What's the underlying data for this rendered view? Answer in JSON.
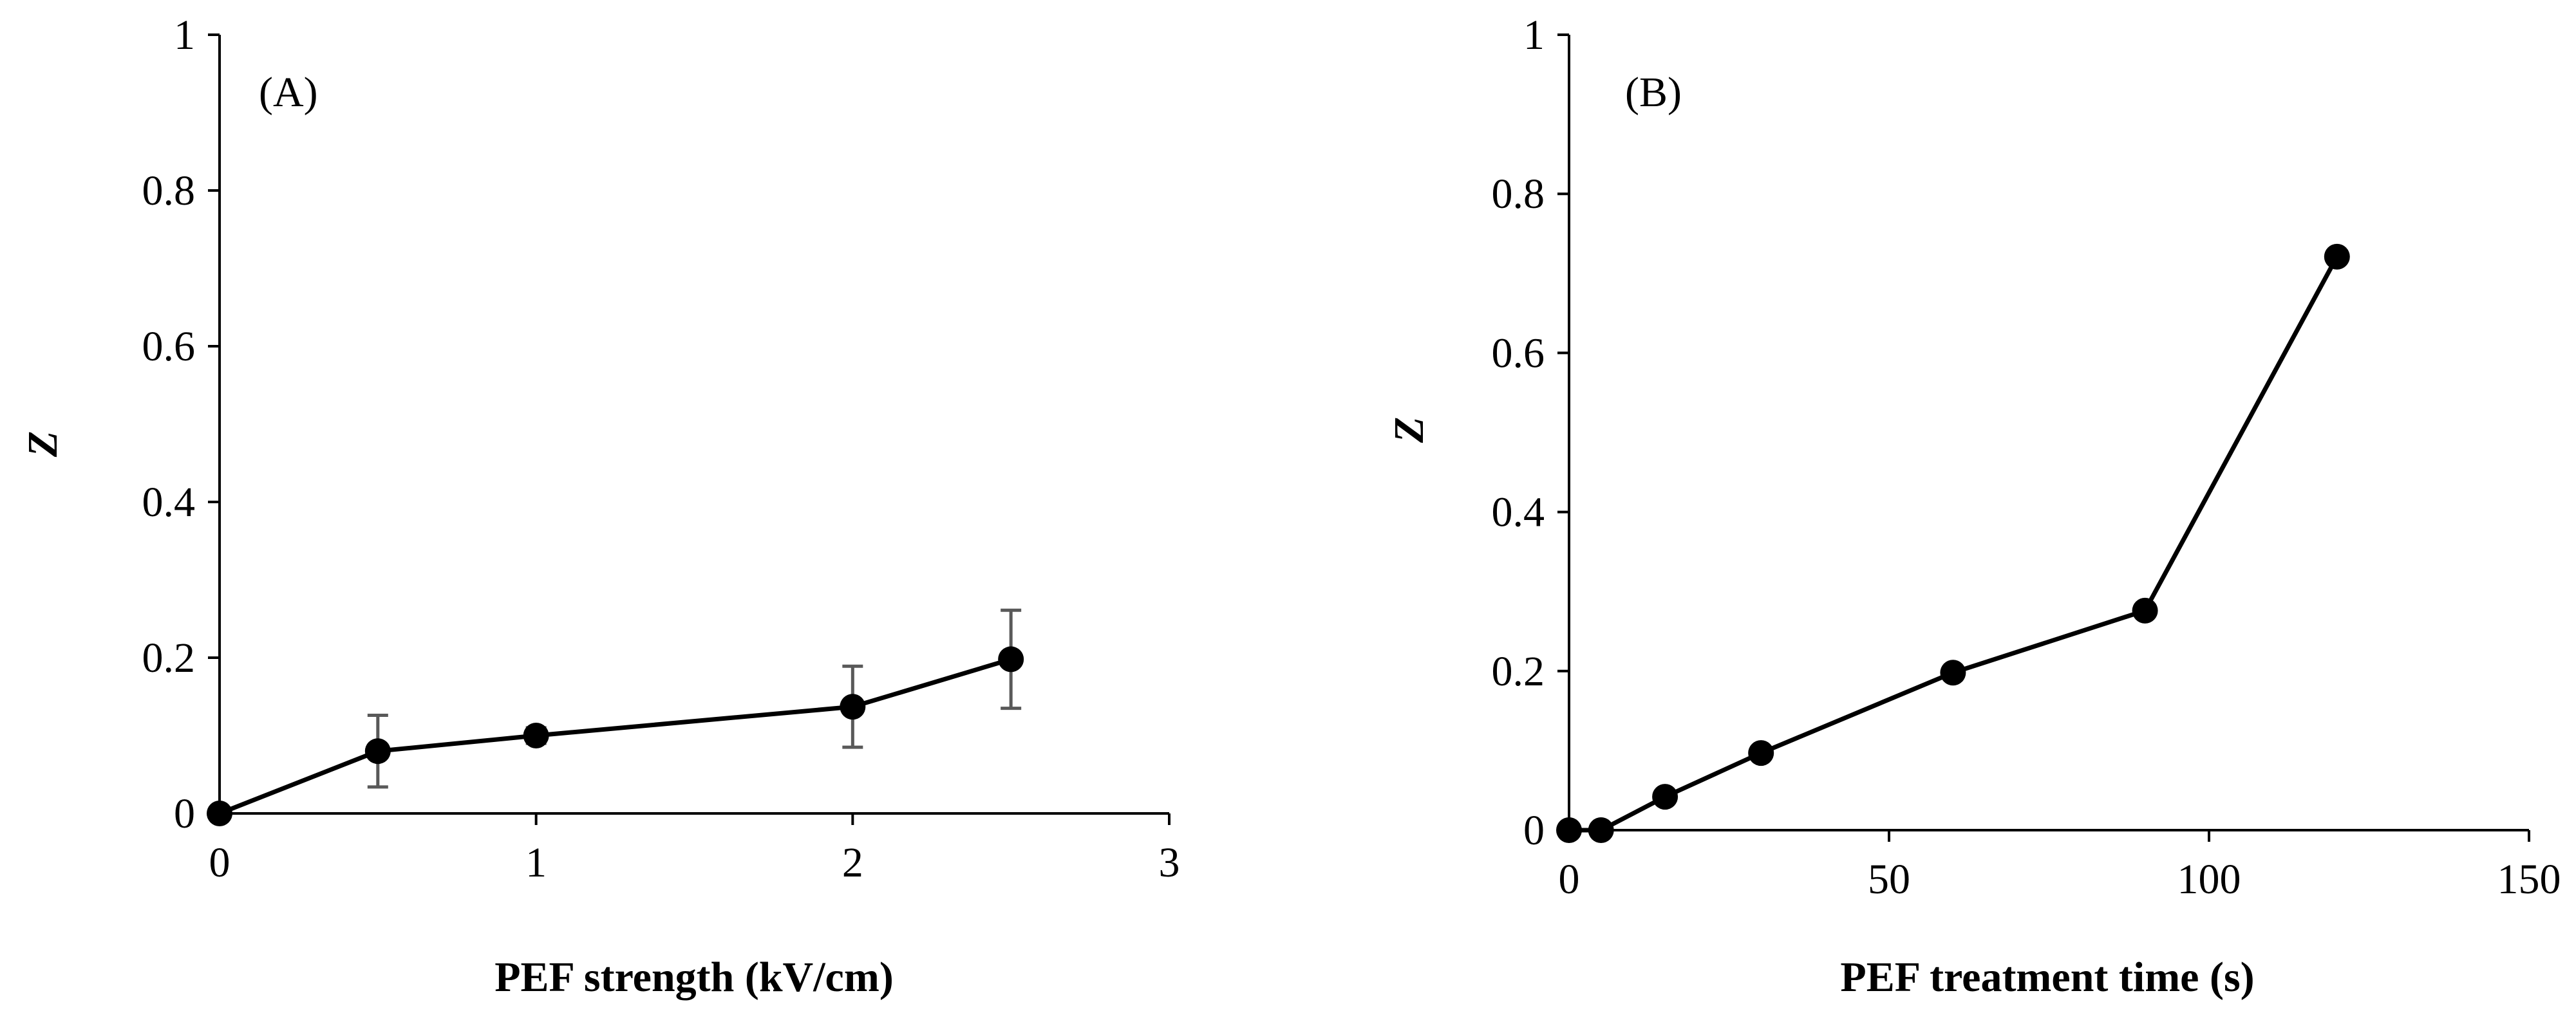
{
  "colors": {
    "series": "#000000",
    "error_bar": "#595959",
    "background": "#ffffff"
  },
  "chart_data": [
    {
      "type": "line",
      "panel_label": "(A)",
      "title": "",
      "xlabel": "PEF strength (kV/cm)",
      "ylabel": "Z",
      "xlim": [
        0,
        3
      ],
      "ylim": [
        0,
        1
      ],
      "xticks": [
        0,
        1,
        2,
        3
      ],
      "xtick_labels": [
        "0",
        "1",
        "2",
        "3"
      ],
      "yticks": [
        0,
        0.2,
        0.4,
        0.6,
        0.8,
        1
      ],
      "ytick_labels": [
        "0",
        "0.2",
        "0.4",
        "0.6",
        "0.8",
        "1"
      ],
      "grid": false,
      "series": [
        {
          "name": "Z",
          "x": [
            0,
            0.5,
            1,
            2,
            2.5
          ],
          "y": [
            0,
            0.08,
            0.1,
            0.137,
            0.198
          ],
          "err": [
            0,
            0.046,
            0.01,
            0.052,
            0.063
          ]
        }
      ]
    },
    {
      "type": "line",
      "panel_label": "(B)",
      "title": "",
      "xlabel": "PEF treatment time (s)",
      "ylabel": "Z",
      "xlim": [
        0,
        150
      ],
      "ylim": [
        0,
        1
      ],
      "xticks": [
        0,
        50,
        100,
        150
      ],
      "xtick_labels": [
        "0",
        "50",
        "100",
        "150"
      ],
      "yticks": [
        0,
        0.2,
        0.4,
        0.6,
        0.8,
        1
      ],
      "ytick_labels": [
        "0",
        "0.2",
        "0.4",
        "0.6",
        "0.8",
        "1"
      ],
      "grid": false,
      "series": [
        {
          "name": "Z",
          "x": [
            0,
            5,
            15,
            30,
            60,
            90,
            120
          ],
          "y": [
            0,
            0,
            0.042,
            0.097,
            0.198,
            0.276,
            0.721
          ]
        }
      ]
    }
  ]
}
